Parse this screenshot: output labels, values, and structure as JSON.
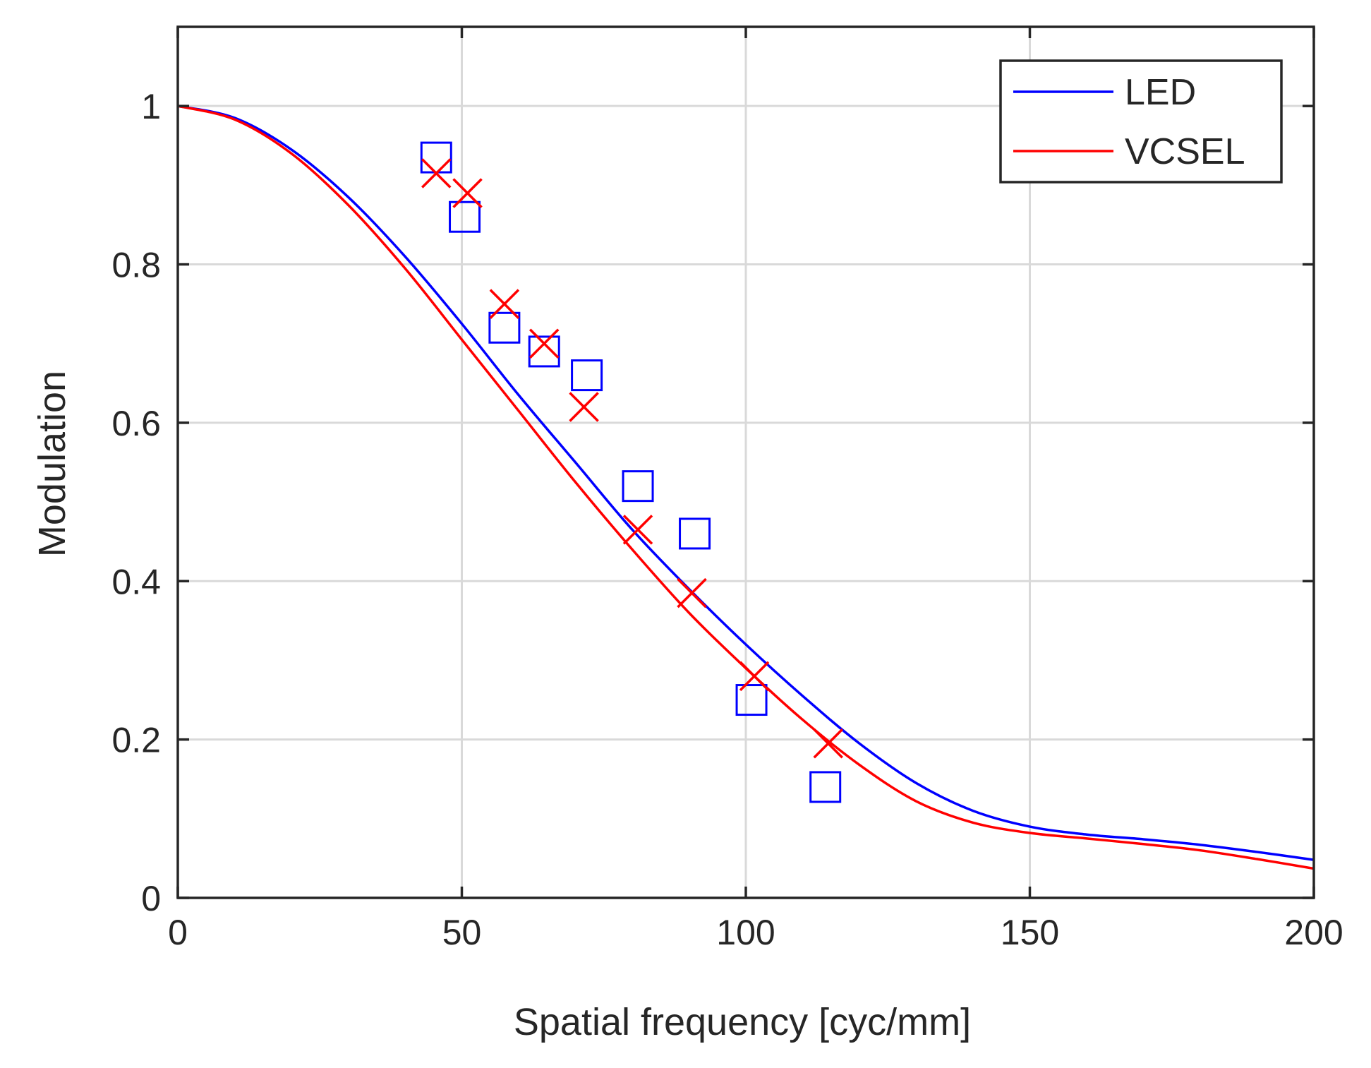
{
  "chart_data": {
    "type": "line",
    "title": "",
    "xlabel": "Spatial frequency [cyc/mm]",
    "ylabel": "Modulation",
    "xlim": [
      0,
      200
    ],
    "ylim": [
      0,
      1.1
    ],
    "xticks": [
      0,
      50,
      100,
      150,
      200
    ],
    "xtick_labels": [
      "0",
      "50",
      "100",
      "150",
      "200"
    ],
    "yticks": [
      0,
      0.2,
      0.4,
      0.6,
      0.8,
      1
    ],
    "ytick_labels": [
      "0",
      "0.2",
      "0.4",
      "0.6",
      "0.8",
      "1"
    ],
    "grid": true,
    "legend_position": "top-right",
    "series": [
      {
        "name": "LED",
        "kind": "line",
        "color": "#0000ff",
        "x": [
          0,
          10,
          20,
          30,
          40,
          50,
          60,
          70,
          80,
          90,
          100,
          110,
          120,
          130,
          140,
          150,
          160,
          170,
          180,
          190,
          200
        ],
        "y": [
          1.0,
          0.985,
          0.945,
          0.885,
          0.81,
          0.725,
          0.635,
          0.55,
          0.465,
          0.39,
          0.32,
          0.255,
          0.195,
          0.145,
          0.11,
          0.09,
          0.08,
          0.074,
          0.067,
          0.058,
          0.048
        ]
      },
      {
        "name": "VCSEL",
        "kind": "line",
        "color": "#ff0000",
        "x": [
          0,
          10,
          20,
          30,
          40,
          50,
          60,
          70,
          80,
          90,
          100,
          110,
          120,
          130,
          140,
          150,
          160,
          170,
          180,
          190,
          200
        ],
        "y": [
          1.0,
          0.983,
          0.94,
          0.875,
          0.795,
          0.705,
          0.615,
          0.525,
          0.44,
          0.36,
          0.29,
          0.225,
          0.168,
          0.122,
          0.095,
          0.082,
          0.075,
          0.068,
          0.06,
          0.049,
          0.037
        ]
      },
      {
        "name": "",
        "kind": "scatter",
        "marker": "square",
        "color": "#0000ff",
        "x": [
          45.5,
          50.5,
          57.5,
          64.5,
          72,
          81,
          91,
          101,
          114
        ],
        "y": [
          0.935,
          0.86,
          0.72,
          0.69,
          0.66,
          0.52,
          0.46,
          0.25,
          0.14
        ]
      },
      {
        "name": "",
        "kind": "scatter",
        "marker": "x",
        "color": "#ff0000",
        "x": [
          45.5,
          51,
          57.5,
          64.5,
          71.5,
          81,
          90.5,
          101.5,
          114.5
        ],
        "y": [
          0.915,
          0.89,
          0.75,
          0.7,
          0.62,
          0.465,
          0.385,
          0.28,
          0.195
        ]
      }
    ]
  }
}
